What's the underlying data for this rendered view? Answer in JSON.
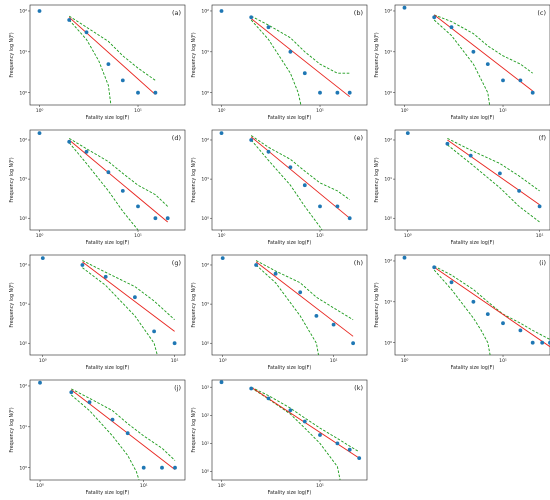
{
  "figure": {
    "xlabel": "Fatality size log(F)",
    "ylabel": "Frequency log N(F)",
    "xticks": [
      "10⁰",
      "10¹"
    ],
    "yticks": [
      "10⁰",
      "10¹",
      "10²"
    ]
  },
  "chart_data": [
    {
      "type": "scatter",
      "panel": "(a)",
      "xlog": true,
      "ylog": true,
      "xlim": [
        0.8,
        30
      ],
      "ylim": [
        0.5,
        140
      ],
      "points": {
        "x": [
          1,
          2,
          3,
          5,
          7,
          10,
          15
        ],
        "y": [
          100,
          60,
          30,
          5,
          2,
          1,
          1
        ]
      },
      "fit": {
        "x": [
          2,
          15
        ],
        "y": [
          70,
          0.9
        ]
      },
      "upper": {
        "x": [
          2,
          3,
          5,
          7,
          10,
          15
        ],
        "y": [
          75,
          40,
          18,
          8,
          4,
          2
        ]
      },
      "lower": {
        "x": [
          2,
          3,
          4,
          5,
          5.3
        ],
        "y": [
          60,
          20,
          6,
          1.5,
          0.5
        ]
      }
    },
    {
      "type": "scatter",
      "panel": "(b)",
      "xlog": true,
      "ylog": true,
      "xlim": [
        0.8,
        30
      ],
      "ylim": [
        0.5,
        140
      ],
      "points": {
        "x": [
          1,
          2,
          3,
          5,
          7,
          10,
          15,
          20
        ],
        "y": [
          100,
          70,
          40,
          10,
          3,
          1,
          1,
          1
        ]
      },
      "fit": {
        "x": [
          2,
          20
        ],
        "y": [
          65,
          0.8
        ]
      },
      "upper": {
        "x": [
          2,
          3,
          5,
          7,
          10,
          15,
          20
        ],
        "y": [
          75,
          45,
          22,
          10,
          5,
          3,
          3
        ]
      },
      "lower": {
        "x": [
          2,
          3,
          5,
          6,
          6.4
        ],
        "y": [
          60,
          20,
          3,
          1,
          0.5
        ]
      }
    },
    {
      "type": "scatter",
      "panel": "(c)",
      "xlog": true,
      "ylog": true,
      "xlim": [
        0.8,
        30
      ],
      "ylim": [
        0.5,
        140
      ],
      "points": {
        "x": [
          1,
          2,
          3,
          5,
          7,
          10,
          15,
          20
        ],
        "y": [
          120,
          70,
          40,
          10,
          5,
          2,
          2,
          1
        ]
      },
      "fit": {
        "x": [
          2,
          20
        ],
        "y": [
          80,
          1.1
        ]
      },
      "upper": {
        "x": [
          2,
          3,
          5,
          7,
          10,
          15,
          20
        ],
        "y": [
          80,
          55,
          28,
          14,
          8,
          5,
          3
        ]
      },
      "lower": {
        "x": [
          2,
          3,
          5,
          7,
          7.3
        ],
        "y": [
          60,
          25,
          5,
          1,
          0.5
        ]
      }
    },
    {
      "type": "scatter",
      "panel": "(d)",
      "xlog": true,
      "ylog": true,
      "xlim": [
        0.8,
        30
      ],
      "ylim": [
        0.5,
        180
      ],
      "points": {
        "x": [
          1,
          2,
          3,
          5,
          7,
          10,
          15,
          20
        ],
        "y": [
          150,
          90,
          50,
          15,
          5,
          2,
          1,
          1
        ]
      },
      "fit": {
        "x": [
          2,
          20
        ],
        "y": [
          100,
          0.8
        ]
      },
      "upper": {
        "x": [
          2,
          3,
          5,
          7,
          10,
          15,
          20
        ],
        "y": [
          110,
          60,
          28,
          14,
          7,
          4,
          2
        ]
      },
      "lower": {
        "x": [
          2,
          3,
          5,
          7,
          10
        ],
        "y": [
          85,
          25,
          5,
          1.5,
          0.5
        ]
      }
    },
    {
      "type": "scatter",
      "panel": "(e)",
      "xlog": true,
      "ylog": true,
      "xlim": [
        0.8,
        30
      ],
      "ylim": [
        0.5,
        180
      ],
      "points": {
        "x": [
          1,
          2,
          3,
          5,
          7,
          10,
          15,
          20
        ],
        "y": [
          150,
          100,
          50,
          20,
          7,
          2,
          2,
          1
        ]
      },
      "fit": {
        "x": [
          2,
          20
        ],
        "y": [
          120,
          1.0
        ]
      },
      "upper": {
        "x": [
          2,
          3,
          5,
          7,
          10,
          15,
          20
        ],
        "y": [
          130,
          65,
          32,
          16,
          8,
          5,
          3
        ]
      },
      "lower": {
        "x": [
          2,
          3,
          5,
          7,
          10,
          10.5
        ],
        "y": [
          100,
          30,
          7,
          2,
          0.6,
          0.5
        ]
      }
    },
    {
      "type": "scatter",
      "panel": "(f)",
      "xlog": true,
      "ylog": true,
      "xlim": [
        0.8,
        12
      ],
      "ylim": [
        0.5,
        180
      ],
      "points": {
        "x": [
          1,
          2,
          3,
          5,
          7,
          10
        ],
        "y": [
          150,
          80,
          40,
          14,
          5,
          2
        ]
      },
      "fit": {
        "x": [
          2,
          10
        ],
        "y": [
          100,
          2.2
        ]
      },
      "upper": {
        "x": [
          2,
          3,
          5,
          7,
          10
        ],
        "y": [
          110,
          55,
          25,
          12,
          5
        ]
      },
      "lower": {
        "x": [
          2,
          3,
          5,
          7,
          10
        ],
        "y": [
          75,
          25,
          6,
          2,
          0.8
        ]
      }
    },
    {
      "type": "scatter",
      "panel": "(g)",
      "xlog": true,
      "ylog": true,
      "xlim": [
        0.8,
        12
      ],
      "ylim": [
        0.5,
        180
      ],
      "points": {
        "x": [
          1,
          2,
          3,
          5,
          7,
          10
        ],
        "y": [
          150,
          100,
          50,
          15,
          2,
          1
        ]
      },
      "fit": {
        "x": [
          2,
          10
        ],
        "y": [
          120,
          2.0
        ]
      },
      "upper": {
        "x": [
          2,
          3,
          5,
          7,
          10
        ],
        "y": [
          130,
          65,
          28,
          12,
          4
        ]
      },
      "lower": {
        "x": [
          2,
          3,
          5,
          7,
          7.4
        ],
        "y": [
          85,
          30,
          5,
          1,
          0.5
        ]
      }
    },
    {
      "type": "scatter",
      "panel": "(h)",
      "xlog": true,
      "ylog": true,
      "xlim": [
        0.8,
        20
      ],
      "ylim": [
        0.5,
        180
      ],
      "points": {
        "x": [
          1,
          2,
          3,
          5,
          7,
          10,
          15
        ],
        "y": [
          150,
          100,
          60,
          20,
          5,
          3,
          1
        ]
      },
      "fit": {
        "x": [
          2,
          15
        ],
        "y": [
          120,
          1.5
        ]
      },
      "upper": {
        "x": [
          2,
          3,
          5,
          7,
          10,
          15
        ],
        "y": [
          130,
          70,
          35,
          15,
          8,
          4
        ]
      },
      "lower": {
        "x": [
          2,
          3,
          5,
          7,
          7.3
        ],
        "y": [
          100,
          35,
          5,
          1,
          0.5
        ]
      }
    },
    {
      "type": "scatter",
      "panel": "(i)",
      "xlog": true,
      "ylog": true,
      "xlim": [
        0.8,
        30
      ],
      "ylim": [
        0.5,
        140
      ],
      "points": {
        "x": [
          1,
          2,
          3,
          5,
          7,
          10,
          15,
          20,
          25,
          30
        ],
        "y": [
          120,
          70,
          30,
          10,
          5,
          3,
          2,
          1,
          1,
          1
        ]
      },
      "fit": {
        "x": [
          2,
          30
        ],
        "y": [
          70,
          0.8
        ]
      },
      "upper": {
        "x": [
          2,
          3,
          5,
          7,
          10,
          15,
          20,
          30
        ],
        "y": [
          75,
          45,
          20,
          10,
          5,
          3,
          2,
          1.2
        ]
      },
      "lower": {
        "x": [
          2,
          3,
          5,
          6,
          7,
          7.4
        ],
        "y": [
          60,
          20,
          4,
          2,
          1,
          0.5
        ]
      }
    },
    {
      "type": "scatter",
      "panel": "(j)",
      "xlog": true,
      "ylog": true,
      "xlim": [
        0.8,
        25
      ],
      "ylim": [
        0.5,
        140
      ],
      "points": {
        "x": [
          1,
          2,
          3,
          5,
          7,
          10,
          15,
          20
        ],
        "y": [
          120,
          70,
          40,
          15,
          7,
          1,
          1,
          1
        ]
      },
      "fit": {
        "x": [
          2,
          20
        ],
        "y": [
          80,
          0.9
        ]
      },
      "upper": {
        "x": [
          2,
          3,
          5,
          7,
          10,
          15,
          20
        ],
        "y": [
          85,
          50,
          25,
          12,
          6,
          3,
          1.5
        ]
      },
      "lower": {
        "x": [
          2,
          3,
          5,
          7,
          8.5,
          9
        ],
        "y": [
          60,
          25,
          6,
          2,
          0.8,
          0.5
        ]
      }
    },
    {
      "type": "scatter",
      "panel": "(k)",
      "xlog": true,
      "ylog": true,
      "xlim": [
        0.8,
        30
      ],
      "ylim": [
        0.5,
        1800
      ],
      "points": {
        "x": [
          1,
          2,
          3,
          5,
          7,
          10,
          15,
          20,
          25
        ],
        "y": [
          1500,
          900,
          400,
          150,
          60,
          20,
          10,
          6,
          3
        ]
      },
      "fit": {
        "x": [
          2,
          25
        ],
        "y": [
          1000,
          3
        ]
      },
      "upper": {
        "x": [
          2,
          3,
          5,
          7,
          10,
          15,
          20,
          25
        ],
        "y": [
          1000,
          500,
          180,
          80,
          35,
          15,
          8,
          5
        ]
      },
      "lower": {
        "x": [
          2,
          3,
          5,
          7,
          10,
          15,
          16
        ],
        "y": [
          950,
          380,
          110,
          35,
          10,
          1.5,
          0.5
        ]
      }
    }
  ]
}
